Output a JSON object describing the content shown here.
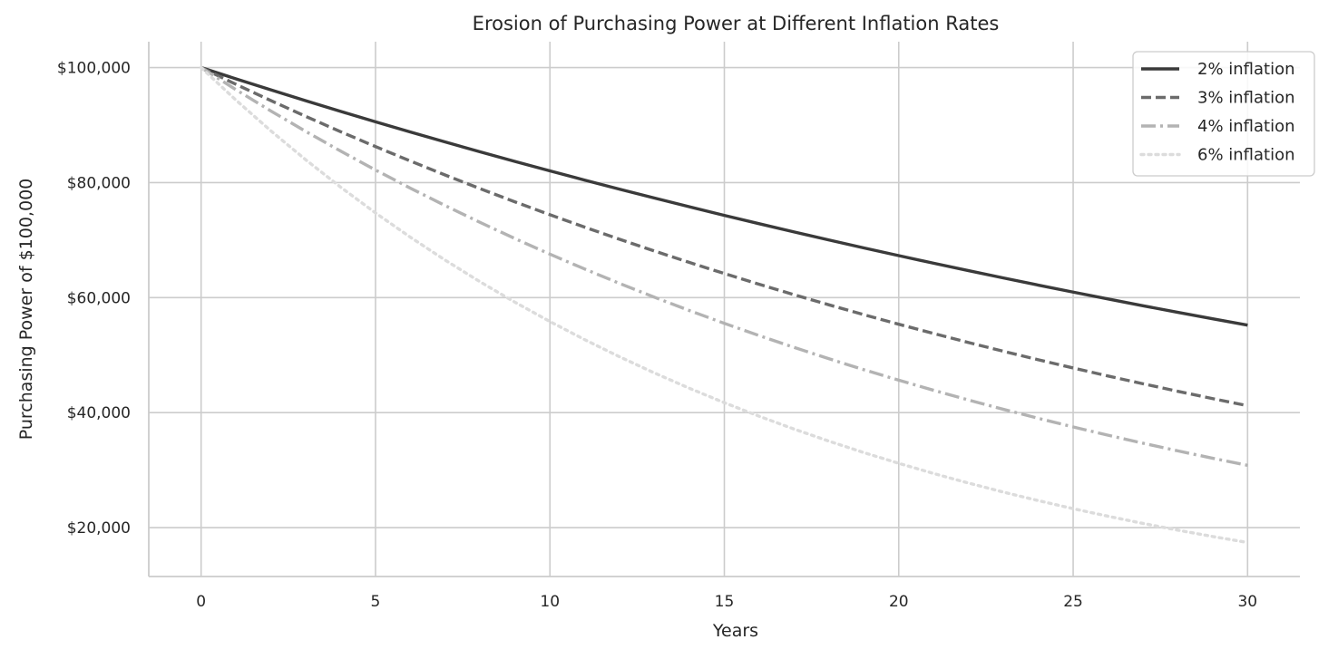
{
  "chart_data": {
    "type": "line",
    "title": "Erosion of Purchasing Power at Different Inflation Rates",
    "xlabel": "Years",
    "ylabel": "Purchasing Power of $100,000",
    "xlim": [
      -1.5,
      31.5
    ],
    "ylim": [
      11500,
      104500
    ],
    "xticks": [
      0,
      5,
      10,
      15,
      20,
      25,
      30
    ],
    "yticks": [
      20000,
      40000,
      60000,
      80000,
      100000
    ],
    "ytick_labels": [
      "$20,000",
      "$40,000",
      "$60,000",
      "$80,000",
      "$100,000"
    ],
    "grid": true,
    "legend_position": "top-right",
    "x": [
      0,
      1,
      2,
      3,
      4,
      5,
      6,
      7,
      8,
      9,
      10,
      11,
      12,
      13,
      14,
      15,
      16,
      17,
      18,
      19,
      20,
      21,
      22,
      23,
      24,
      25,
      26,
      27,
      28,
      29,
      30
    ],
    "series": [
      {
        "name": "2% inflation",
        "color": "#3a3a3a",
        "dash": "solid",
        "values": [
          100000,
          98039,
          96117,
          94232,
          92385,
          90573,
          88797,
          87056,
          85349,
          83676,
          82035,
          80426,
          78849,
          77303,
          75788,
          74301,
          72845,
          71416,
          70016,
          68643,
          67297,
          65978,
          64684,
          63416,
          62172,
          60953,
          59758,
          58586,
          57437,
          56311,
          55207
        ]
      },
      {
        "name": "3% inflation",
        "color": "#6b6b6b",
        "dash": "dashed",
        "values": [
          100000,
          97087,
          94260,
          91514,
          88849,
          86261,
          83748,
          81309,
          78941,
          76642,
          74409,
          72242,
          70138,
          68095,
          66112,
          64186,
          62317,
          60502,
          58739,
          57029,
          55368,
          53755,
          52189,
          50669,
          49193,
          47761,
          46369,
          45019,
          43708,
          42435,
          41199
        ]
      },
      {
        "name": "4% inflation",
        "color": "#b3b3b3",
        "dash": "dashdot",
        "values": [
          100000,
          96154,
          92456,
          88900,
          85480,
          82193,
          79031,
          75992,
          73069,
          70259,
          67556,
          64958,
          62460,
          60057,
          57748,
          55526,
          53391,
          51337,
          49363,
          47464,
          45639,
          43883,
          42196,
          40573,
          39012,
          37512,
          36069,
          34682,
          33348,
          32065,
          30832
        ]
      },
      {
        "name": "6% inflation",
        "color": "#dcdcdc",
        "dash": "dotted",
        "values": [
          100000,
          94340,
          89000,
          83962,
          79209,
          74726,
          70496,
          66506,
          62741,
          59190,
          55839,
          52679,
          49697,
          46884,
          44230,
          41727,
          39365,
          37136,
          35034,
          33051,
          31180,
          29416,
          27751,
          26180,
          24698,
          23300,
          21981,
          20737,
          19563,
          18456,
          17411
        ]
      }
    ]
  }
}
